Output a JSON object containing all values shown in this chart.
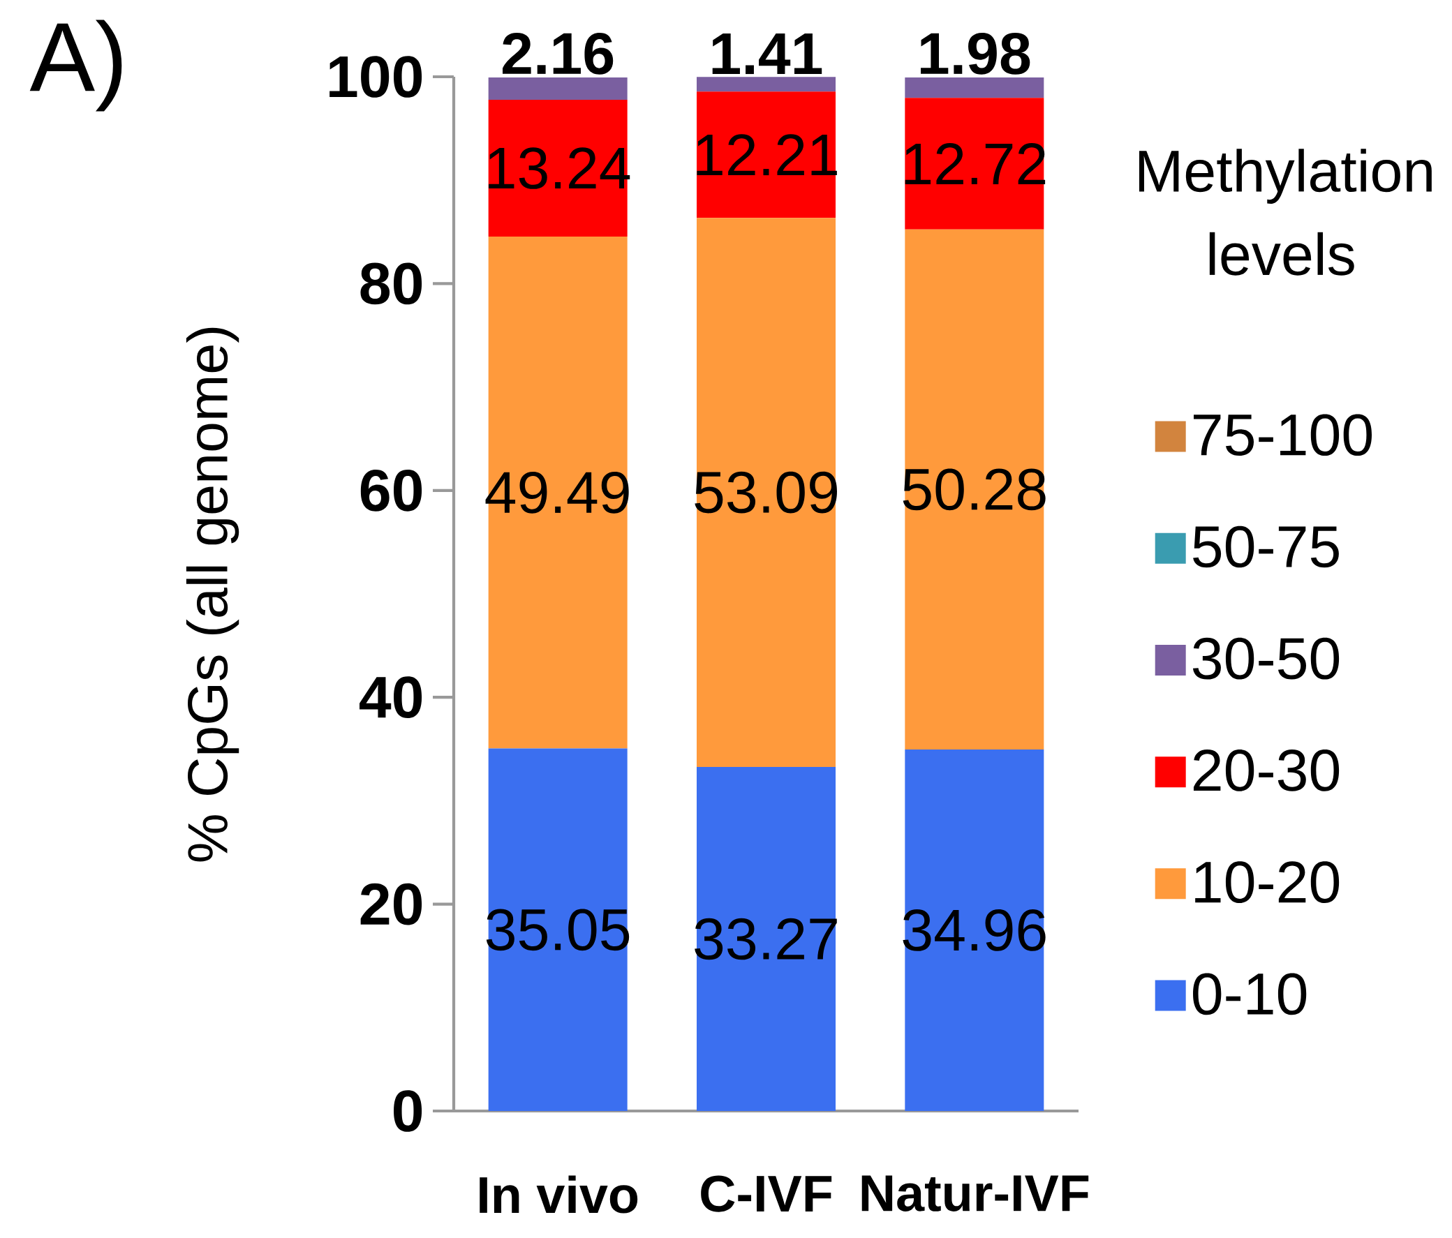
{
  "chart_data": {
    "type": "bar",
    "stacked": true,
    "title": "A)",
    "ylabel": "% CpGs (all genome)",
    "legend_title": "Methylation levels",
    "categories": [
      "In vivo",
      "C-IVF",
      "Natur-IVF"
    ],
    "ylim": [
      0,
      100
    ],
    "yticks": [
      0,
      20,
      40,
      60,
      80,
      100
    ],
    "legend": "right",
    "series": [
      {
        "name": "0-10",
        "color": "#3b6ff0",
        "values": [
          35.05,
          33.27,
          34.96
        ],
        "value_labels": [
          "35.05",
          "33.27",
          "34.96"
        ]
      },
      {
        "name": "10-20",
        "color": "#ff9a3c",
        "values": [
          49.49,
          53.09,
          50.28
        ],
        "value_labels": [
          "49.49",
          "53.09",
          "50.28"
        ]
      },
      {
        "name": "20-30",
        "color": "#ff0000",
        "values": [
          13.24,
          12.21,
          12.72
        ],
        "value_labels": [
          "13.24",
          "12.21",
          "12.72"
        ]
      },
      {
        "name": "30-50",
        "color": "#7a5fa0",
        "values": [
          2.16,
          1.41,
          1.98
        ],
        "value_labels": [
          "2.16",
          "1.41",
          "1.98"
        ]
      },
      {
        "name": "50-75",
        "color": "#3a9cb0",
        "values": [
          0,
          0,
          0
        ],
        "value_labels": [
          null,
          null,
          null
        ]
      },
      {
        "name": "75-100",
        "color": "#d2843e",
        "values": [
          0,
          0,
          0
        ],
        "value_labels": [
          null,
          null,
          null
        ]
      }
    ]
  }
}
